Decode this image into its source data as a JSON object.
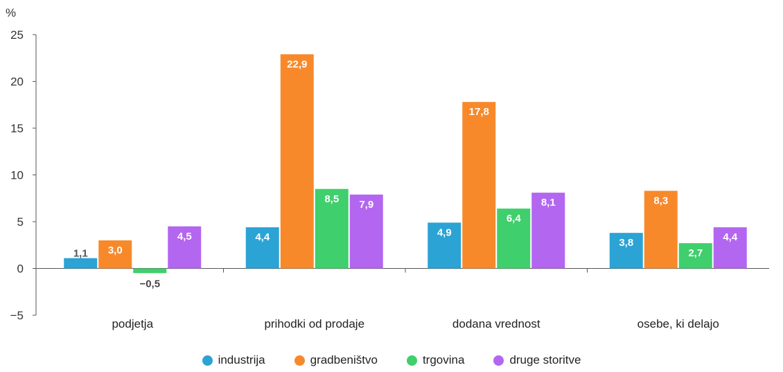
{
  "chart_data": {
    "type": "bar",
    "unit_label": "%",
    "categories": [
      "podjetja",
      "prihodki od prodaje",
      "dodana vrednost",
      "osebe, ki delajo"
    ],
    "series": [
      {
        "name": "industrija",
        "color": "#2ba3d4",
        "values": [
          1.1,
          4.4,
          4.9,
          3.8
        ],
        "labels": [
          "1,1",
          "4,4",
          "4,9",
          "3,8"
        ]
      },
      {
        "name": "gradbeništvo",
        "color": "#f7892b",
        "values": [
          3.0,
          22.9,
          17.8,
          8.3
        ],
        "labels": [
          "3,0",
          "22,9",
          "17,8",
          "8,3"
        ]
      },
      {
        "name": "trgovina",
        "color": "#3fcf6c",
        "values": [
          -0.5,
          8.5,
          6.4,
          2.7
        ],
        "labels": [
          "−0,5",
          "8,5",
          "6,4",
          "2,7"
        ]
      },
      {
        "name": "druge storitve",
        "color": "#b366f0",
        "values": [
          4.5,
          7.9,
          8.1,
          4.4
        ],
        "labels": [
          "4,5",
          "7,9",
          "8,1",
          "4,4"
        ]
      }
    ],
    "yticks": [
      -5,
      0,
      5,
      10,
      15,
      20,
      25
    ],
    "ytick_labels": [
      "−5",
      "0",
      "5",
      "10",
      "15",
      "20",
      "25"
    ],
    "ylim": [
      -5,
      25
    ],
    "grid": false,
    "legend_position": "bottom"
  }
}
